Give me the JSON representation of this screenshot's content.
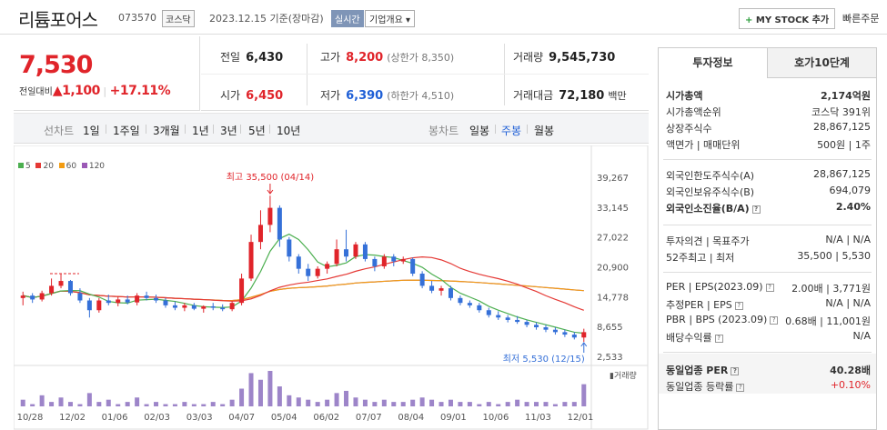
{
  "header": {
    "title": "리튬포어스",
    "code": "073570",
    "market": "코스닥",
    "date": "2023.12.15 기준(장마감)",
    "realtime": "실시간",
    "overview": "기업개요 ▾",
    "mystock": "MY STOCK 추가",
    "mystock_plus": "+",
    "quick_order": "빠른주문"
  },
  "price": {
    "current": "7,530",
    "change_label": "전일대비",
    "change_arrow": "▲",
    "change_amount": "1,100",
    "change_pct": "+17.11%"
  },
  "quotes": {
    "prev_label": "전일",
    "prev": "6,430",
    "high_label": "고가",
    "high": "8,200",
    "upper_limit": "(상한가 8,350)",
    "volume_label": "거래량",
    "volume": "9,545,730",
    "open_label": "시가",
    "open": "6,450",
    "low_label": "저가",
    "low": "6,390",
    "lower_limit": "(하한가 4,510)",
    "amount_label": "거래대금",
    "amount": "72,180",
    "amount_unit": "백만"
  },
  "toolbar": {
    "line_chart": "선차트",
    "periods": [
      "1일",
      "1주일",
      "3개월",
      "1년",
      "3년",
      "5년",
      "10년"
    ],
    "candle_chart": "봉차트",
    "candle_periods": [
      "일봉",
      "주봉",
      "월봉"
    ],
    "candle_active": "주봉"
  },
  "legend": {
    "ma5": "5",
    "ma20": "20",
    "ma60": "60",
    "ma120": "120",
    "colors": {
      "ma5": "#4caf50",
      "ma20": "#e53935",
      "ma60": "#f39c12",
      "ma120": "#9b59b6"
    }
  },
  "chart_data": {
    "type": "candlestick",
    "y_ticks": [
      "39,267",
      "33,145",
      "27,022",
      "20,900",
      "14,778",
      "8,655",
      "2,533"
    ],
    "x_ticks": [
      "10/28",
      "12/02",
      "01/06",
      "02/03",
      "03/03",
      "04/07",
      "05/04",
      "06/02",
      "07/07",
      "08/04",
      "09/01",
      "10/06",
      "11/03",
      "12/01"
    ],
    "high_annotation": "최고 35,500 (04/14)",
    "low_annotation": "최저 5,530 (12/15)",
    "volume_label": "거래량",
    "candles": [
      [
        14.5,
        15.8,
        13.0,
        15.0
      ],
      [
        15.0,
        15.5,
        13.5,
        14.2
      ],
      [
        14.2,
        16.0,
        13.8,
        15.5
      ],
      [
        15.5,
        18.5,
        15.0,
        17.0
      ],
      [
        17.0,
        19.5,
        16.5,
        18.0
      ],
      [
        18.0,
        18.2,
        15.0,
        15.5
      ],
      [
        15.5,
        16.5,
        13.5,
        14.0
      ],
      [
        14.0,
        14.5,
        10.5,
        12.0
      ],
      [
        12.0,
        14.5,
        11.5,
        14.0
      ],
      [
        14.0,
        15.2,
        13.0,
        13.5
      ],
      [
        13.5,
        14.8,
        12.8,
        14.2
      ],
      [
        14.2,
        15.0,
        13.2,
        13.6
      ],
      [
        13.6,
        15.5,
        13.0,
        15.0
      ],
      [
        15.0,
        15.8,
        14.0,
        14.5
      ],
      [
        14.5,
        15.2,
        13.5,
        14.0
      ],
      [
        14.0,
        14.5,
        12.5,
        13.0
      ],
      [
        13.0,
        13.8,
        12.0,
        12.5
      ],
      [
        12.5,
        13.5,
        11.8,
        13.0
      ],
      [
        13.0,
        13.5,
        12.0,
        12.3
      ],
      [
        12.3,
        13.0,
        11.5,
        12.8
      ],
      [
        12.8,
        13.5,
        12.0,
        12.5
      ],
      [
        12.5,
        13.2,
        11.8,
        12.2
      ],
      [
        12.2,
        13.8,
        11.8,
        13.5
      ],
      [
        13.5,
        19.5,
        13.0,
        18.5
      ],
      [
        18.5,
        27.5,
        18.0,
        26.0
      ],
      [
        26.0,
        32.5,
        24.5,
        29.5
      ],
      [
        29.5,
        35.5,
        28.0,
        33.0
      ],
      [
        33.0,
        33.5,
        25.0,
        26.5
      ],
      [
        26.5,
        27.0,
        22.0,
        23.0
      ],
      [
        23.0,
        23.5,
        19.5,
        20.5
      ],
      [
        20.5,
        21.5,
        18.0,
        19.0
      ],
      [
        19.0,
        21.0,
        18.5,
        20.5
      ],
      [
        20.5,
        22.0,
        19.5,
        21.5
      ],
      [
        21.5,
        26.5,
        21.0,
        24.5
      ],
      [
        24.5,
        28.5,
        22.0,
        23.0
      ],
      [
        23.0,
        26.0,
        22.5,
        25.5
      ],
      [
        25.5,
        26.0,
        22.0,
        22.5
      ],
      [
        22.5,
        23.0,
        20.0,
        21.0
      ],
      [
        21.0,
        23.5,
        20.5,
        23.0
      ],
      [
        23.0,
        23.5,
        21.0,
        22.0
      ],
      [
        22.0,
        23.0,
        21.5,
        22.5
      ],
      [
        22.5,
        22.8,
        19.0,
        19.5
      ],
      [
        19.5,
        20.0,
        16.5,
        17.0
      ],
      [
        17.0,
        18.0,
        15.5,
        16.0
      ],
      [
        16.0,
        17.0,
        15.0,
        16.5
      ],
      [
        16.5,
        17.0,
        14.0,
        14.5
      ],
      [
        14.5,
        15.0,
        13.0,
        13.5
      ],
      [
        13.5,
        14.0,
        12.5,
        13.0
      ],
      [
        13.0,
        13.5,
        11.5,
        12.0
      ],
      [
        12.0,
        12.5,
        10.5,
        11.0
      ],
      [
        11.0,
        11.8,
        10.0,
        10.5
      ],
      [
        10.5,
        11.0,
        9.5,
        10.0
      ],
      [
        10.0,
        10.8,
        9.2,
        9.6
      ],
      [
        9.6,
        10.0,
        8.5,
        9.0
      ],
      [
        9.0,
        9.5,
        8.0,
        8.5
      ],
      [
        8.5,
        9.0,
        7.5,
        8.0
      ],
      [
        8.0,
        8.5,
        7.0,
        7.5
      ],
      [
        7.5,
        8.0,
        6.5,
        7.0
      ],
      [
        7.0,
        7.5,
        6.0,
        6.4
      ],
      [
        6.4,
        8.2,
        5.5,
        7.5
      ]
    ],
    "volumes": [
      3,
      1,
      5,
      2,
      4,
      2,
      1,
      6,
      2,
      3,
      1,
      2,
      4,
      1,
      2,
      1,
      1,
      2,
      1,
      1,
      2,
      1,
      3,
      8,
      15,
      12,
      16,
      9,
      5,
      4,
      3,
      2,
      3,
      6,
      7,
      4,
      3,
      2,
      3,
      2,
      2,
      3,
      4,
      3,
      2,
      3,
      2,
      2,
      1,
      2,
      1,
      2,
      3,
      2,
      2,
      2,
      1,
      2,
      2,
      10
    ]
  },
  "right_panel": {
    "tab_active": "투자정보",
    "tab_inactive": "호가10단계",
    "rows": [
      {
        "l": "시가총액",
        "r": "2,174억원"
      },
      {
        "l": "시가총액순위",
        "r": "코스닥 391위"
      },
      {
        "l": "상장주식수",
        "r": "28,867,125"
      },
      {
        "l": "액면가 | 매매단위",
        "r": "500원 | 1주"
      },
      {
        "l": "외국인한도주식수(A)",
        "r": "28,867,125"
      },
      {
        "l": "외국인보유주식수(B)",
        "r": "694,079"
      },
      {
        "l": "외국인소진율(B/A)",
        "r": "2.40%"
      },
      {
        "l": "투자의견 | 목표주가",
        "r": "N/A | N/A"
      },
      {
        "l": "52주최고 | 최저",
        "r": "35,500 | 5,530"
      },
      {
        "l": "PER | EPS(2023.09)",
        "r": "2.00배 | 3,771원"
      },
      {
        "l": "추정PER | EPS",
        "r": "N/A | N/A"
      },
      {
        "l": "PBR | BPS (2023.09)",
        "r": "0.68배 | 11,001원"
      },
      {
        "l": "배당수익률",
        "r": "N/A"
      },
      {
        "l": "동일업종 PER",
        "r": "40.28배"
      },
      {
        "l": "동일업종 등락률",
        "r": "+0.10%"
      }
    ]
  }
}
